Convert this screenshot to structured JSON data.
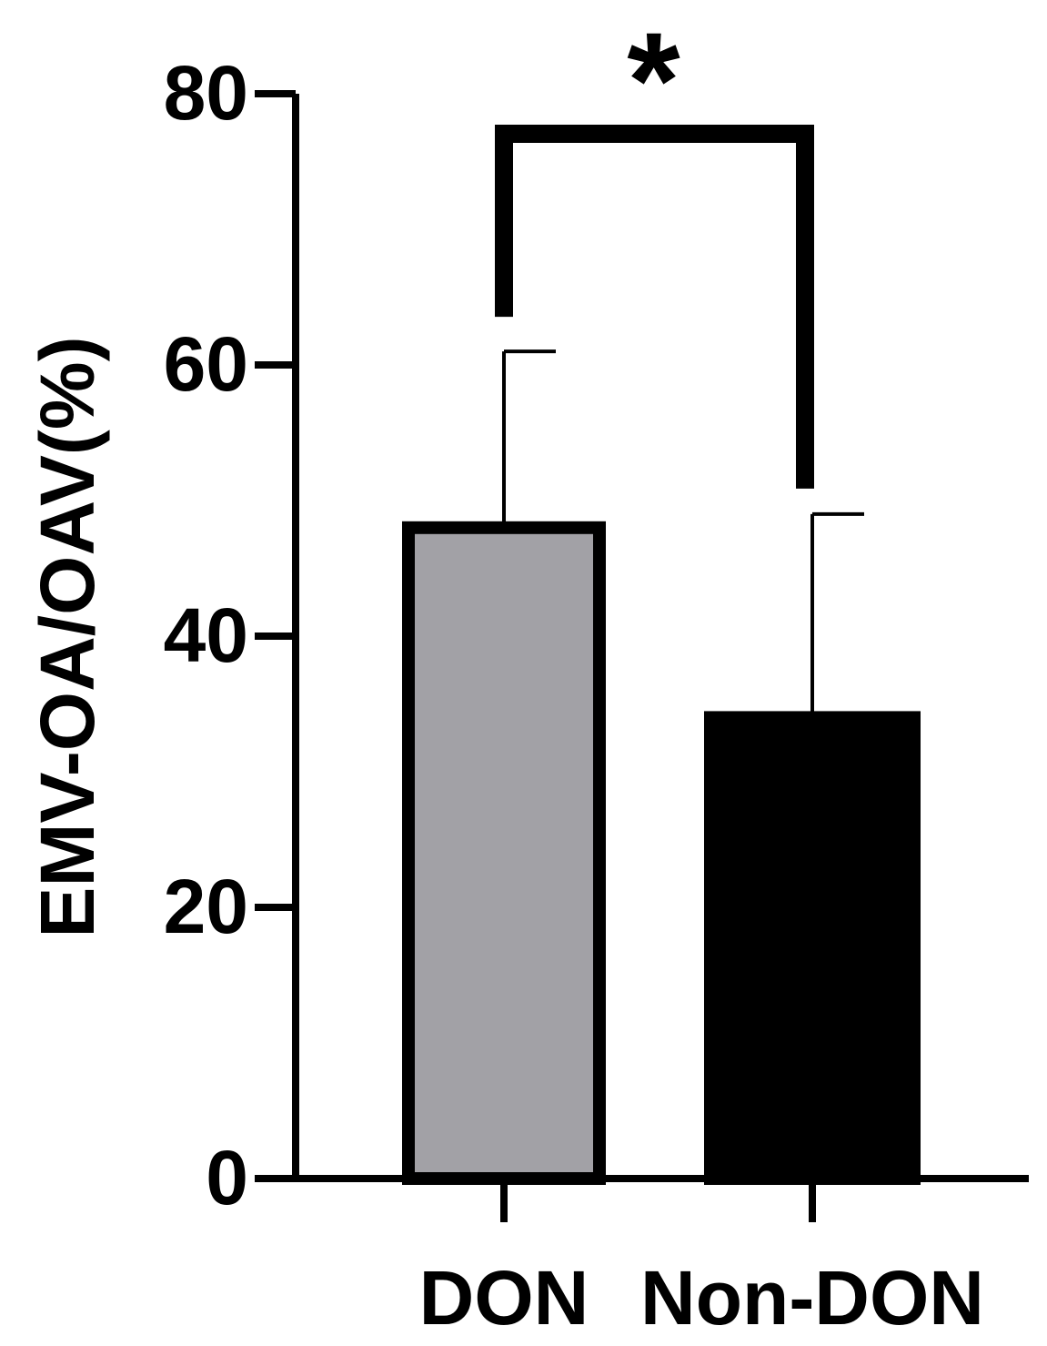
{
  "chart_data": {
    "type": "bar",
    "title": "",
    "xlabel": "",
    "ylabel": "EMV-OA/OAV(%)",
    "ylim": [
      0,
      80
    ],
    "yticks": [
      0,
      20,
      40,
      60,
      80
    ],
    "grid": false,
    "categories": [
      "DON",
      "Non-DON"
    ],
    "values": [
      48,
      34
    ],
    "errors": [
      13,
      15
    ],
    "colors": {
      "DON": "#a2a1a6",
      "Non-DON": "#000000",
      "axis": "#000000"
    },
    "significance": {
      "label": "*",
      "between": [
        "DON",
        "Non-DON"
      ]
    }
  }
}
